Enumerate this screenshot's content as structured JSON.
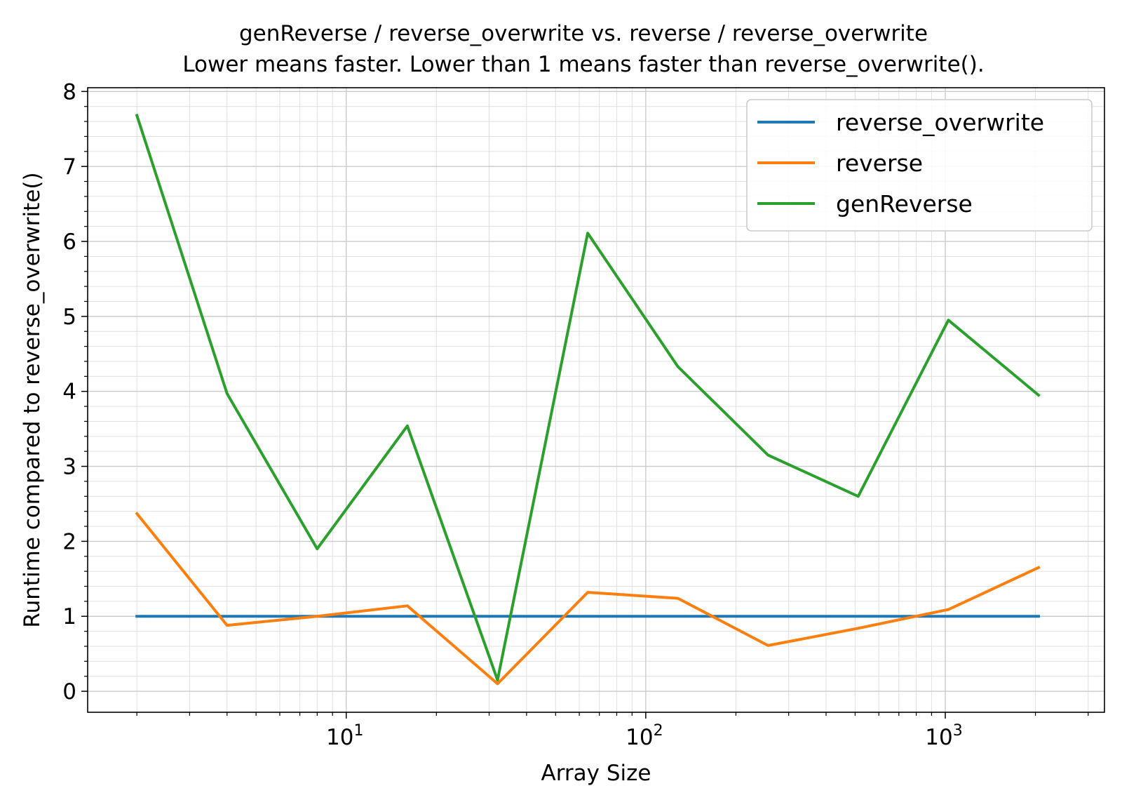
{
  "chart_data": {
    "type": "line",
    "title": "genReverse / reverse_overwrite vs. reverse / reverse_overwrite",
    "subtitle": "Lower means faster. Lower than 1 means faster than reverse_overwrite().",
    "xlabel": "Array Size",
    "ylabel": "Runtime compared to reverse_overwrite()",
    "xscale": "log",
    "xlim": [
      1.37,
      3400
    ],
    "ylim": [
      -0.28,
      8.05
    ],
    "grid": "major and minor",
    "legend_position": "top-right",
    "x": [
      2,
      4,
      8,
      16,
      32,
      64,
      128,
      256,
      512,
      1024,
      2048
    ],
    "x_ticks": [
      {
        "value": 10,
        "base": "10",
        "exp": "1"
      },
      {
        "value": 100,
        "base": "10",
        "exp": "2"
      },
      {
        "value": 1000,
        "base": "10",
        "exp": "3"
      }
    ],
    "y_ticks": [
      "0",
      "1",
      "2",
      "3",
      "4",
      "5",
      "6",
      "7",
      "8"
    ],
    "series": [
      {
        "name": "reverse_overwrite",
        "color": "#1f77b4",
        "values": [
          1,
          1,
          1,
          1,
          1,
          1,
          1,
          1,
          1,
          1,
          1
        ]
      },
      {
        "name": "reverse",
        "color": "#ff7f0e",
        "values": [
          2.37,
          0.88,
          1.0,
          1.14,
          0.1,
          1.32,
          1.24,
          0.61,
          0.84,
          1.09,
          1.65
        ]
      },
      {
        "name": "genReverse",
        "color": "#2ca02c",
        "values": [
          7.68,
          3.97,
          1.9,
          3.54,
          0.15,
          6.11,
          4.33,
          3.15,
          2.6,
          4.95,
          3.95
        ]
      }
    ]
  }
}
